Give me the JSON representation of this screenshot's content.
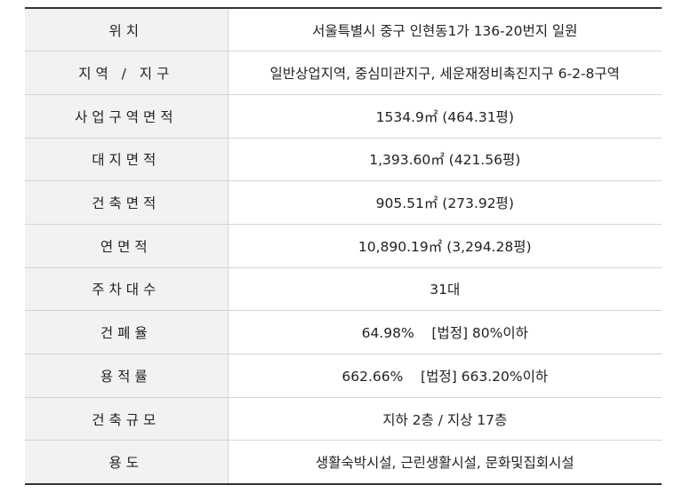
{
  "rows": [
    {
      "label": "위치",
      "value": "서울특별시 중구 인현동1가 136-20번지 일원"
    },
    {
      "label": "지역 / 지구",
      "value": "일반상업지역, 중심미관지구, 세운재정비촉진지구 6-2-8구역"
    },
    {
      "label": "사업구역면적",
      "value": "1534.9㎡ (464.31평)"
    },
    {
      "label": "대지면적",
      "value": "1,393.60㎡ (421.56평)"
    },
    {
      "label": "건축면적",
      "value": "905.51㎡ (273.92평)"
    },
    {
      "label": "연면적",
      "value": "10,890.19㎡ (3,294.28평)"
    },
    {
      "label": "주차대수",
      "value": "31대"
    },
    {
      "label": "건폐율",
      "value": "64.98%    [법정] 80%이하"
    },
    {
      "label": "용적률",
      "value": "662.66%    [법정] 663.20%이하"
    },
    {
      "label": "건축규모",
      "value": "지하 2층 / 지상 17층"
    },
    {
      "label": "용도",
      "value": "생활숙박시설, 근린생활시설, 문화및집회시설"
    }
  ]
}
